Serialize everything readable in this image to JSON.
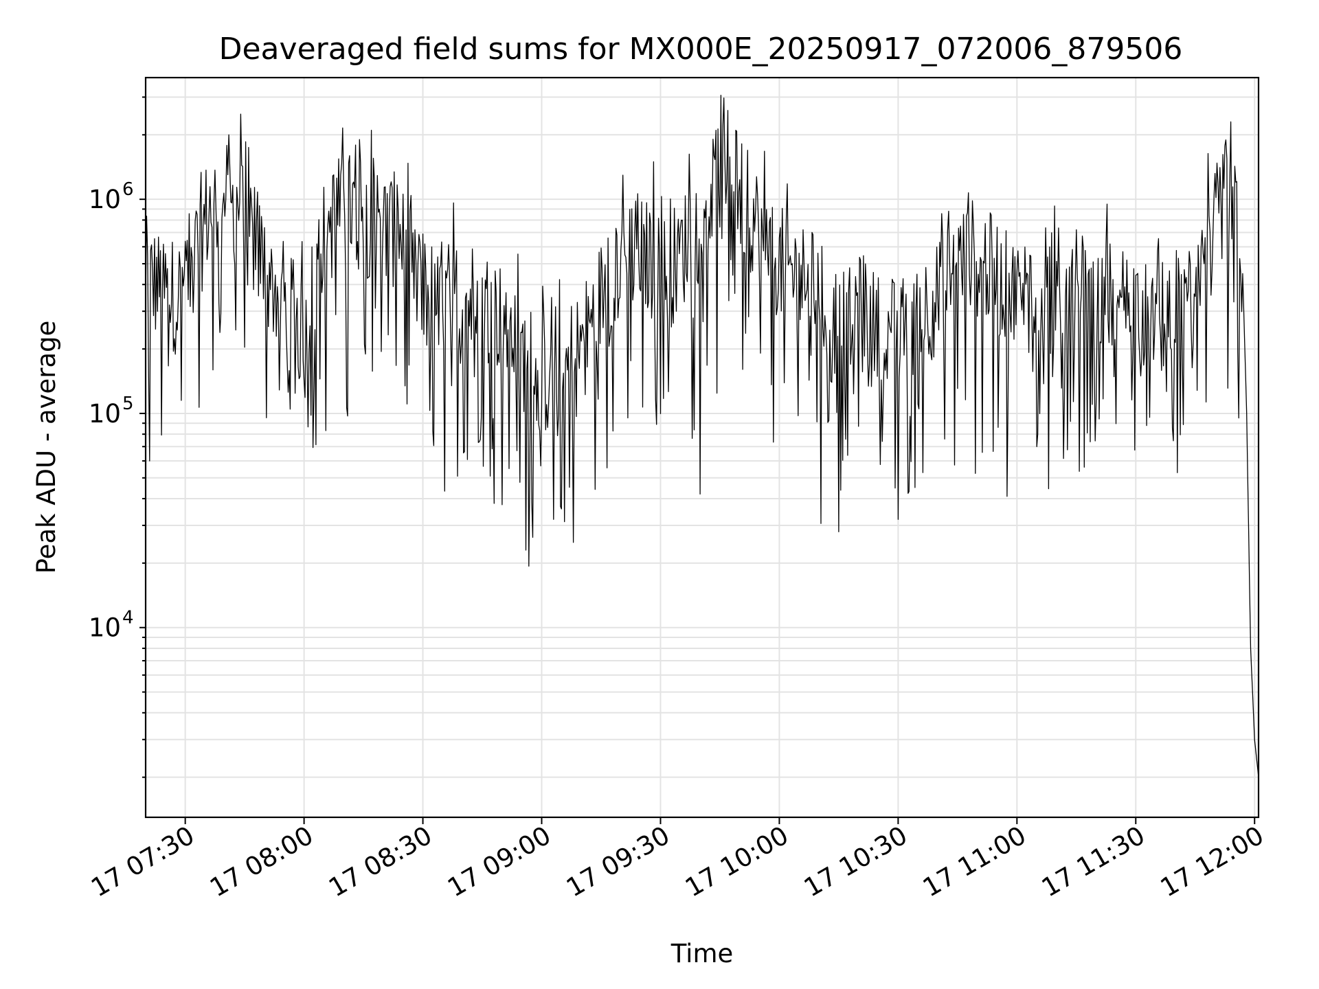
{
  "chart_data": {
    "type": "line",
    "title": "Deaveraged field sums for MX000E_20250917_072006_879506",
    "xlabel": "Time",
    "ylabel": "Peak ADU - average",
    "yscale": "log",
    "ylim": [
      1300,
      3700000
    ],
    "xlim": [
      "17 07:20",
      "17 12:01"
    ],
    "grid": true,
    "line_color": "#000000",
    "x_ticks": [
      "17 07:30",
      "17 08:00",
      "17 08:30",
      "17 09:00",
      "17 09:30",
      "17 10:00",
      "17 10:30",
      "17 11:00",
      "17 11:30",
      "17 12:00"
    ],
    "y_ticks": [
      {
        "base": "10",
        "exp": "4",
        "value": 10000
      },
      {
        "base": "10",
        "exp": "5",
        "value": 100000
      },
      {
        "base": "10",
        "exp": "6",
        "value": 1000000
      }
    ],
    "series": [
      {
        "x_start": "17 07:20",
        "x_end": "17 12:01",
        "anchors": [
          [
            "07:20",
            450000
          ],
          [
            "07:24",
            380000
          ],
          [
            "07:28",
            350000
          ],
          [
            "07:32",
            500000
          ],
          [
            "07:36",
            900000
          ],
          [
            "07:40",
            1000000
          ],
          [
            "07:44",
            850000
          ],
          [
            "07:48",
            600000
          ],
          [
            "07:52",
            400000
          ],
          [
            "07:56",
            300000
          ],
          [
            "08:00",
            250000
          ],
          [
            "08:04",
            600000
          ],
          [
            "08:08",
            850000
          ],
          [
            "08:12",
            900000
          ],
          [
            "08:16",
            800000
          ],
          [
            "08:20",
            750000
          ],
          [
            "08:24",
            700000
          ],
          [
            "08:28",
            400000
          ],
          [
            "08:32",
            350000
          ],
          [
            "08:36",
            350000
          ],
          [
            "08:40",
            350000
          ],
          [
            "08:44",
            330000
          ],
          [
            "08:48",
            300000
          ],
          [
            "08:52",
            250000
          ],
          [
            "08:56",
            180000
          ],
          [
            "09:00",
            150000
          ],
          [
            "09:04",
            140000
          ],
          [
            "09:08",
            180000
          ],
          [
            "09:12",
            250000
          ],
          [
            "09:16",
            400000
          ],
          [
            "09:20",
            500000
          ],
          [
            "09:24",
            600000
          ],
          [
            "09:28",
            500000
          ],
          [
            "09:32",
            450000
          ],
          [
            "09:36",
            600000
          ],
          [
            "09:40",
            800000
          ],
          [
            "09:44",
            1100000
          ],
          [
            "09:48",
            1300000
          ],
          [
            "09:52",
            900000
          ],
          [
            "09:56",
            700000
          ],
          [
            "10:00",
            500000
          ],
          [
            "10:04",
            450000
          ],
          [
            "10:08",
            400000
          ],
          [
            "10:12",
            300000
          ],
          [
            "10:16",
            250000
          ],
          [
            "10:20",
            300000
          ],
          [
            "10:24",
            250000
          ],
          [
            "10:28",
            220000
          ],
          [
            "10:32",
            250000
          ],
          [
            "10:36",
            300000
          ],
          [
            "10:40",
            350000
          ],
          [
            "10:44",
            450000
          ],
          [
            "10:48",
            550000
          ],
          [
            "10:52",
            500000
          ],
          [
            "10:56",
            400000
          ],
          [
            "11:00",
            350000
          ],
          [
            "11:04",
            400000
          ],
          [
            "11:08",
            400000
          ],
          [
            "11:12",
            350000
          ],
          [
            "11:16",
            300000
          ],
          [
            "11:20",
            350000
          ],
          [
            "11:24",
            350000
          ],
          [
            "11:28",
            320000
          ],
          [
            "11:32",
            300000
          ],
          [
            "11:36",
            280000
          ],
          [
            "11:40",
            300000
          ],
          [
            "11:44",
            320000
          ],
          [
            "11:48",
            550000
          ],
          [
            "11:52",
            1000000
          ],
          [
            "11:54",
            1100000
          ],
          [
            "11:56",
            700000
          ],
          [
            "11:57",
            450000
          ],
          [
            "11:58",
            100000
          ],
          [
            "11:59",
            8000
          ],
          [
            "12:00",
            3000
          ],
          [
            "12:01",
            2000
          ]
        ],
        "peaks": [
          [
            "07:44",
            2500000
          ],
          [
            "07:41",
            2000000
          ],
          [
            "08:14",
            1900000
          ],
          [
            "08:17",
            2100000
          ],
          [
            "09:44",
            2100000
          ],
          [
            "09:47",
            2600000
          ],
          [
            "09:49",
            2100000
          ],
          [
            "11:54",
            2300000
          ]
        ],
        "dips": [
          [
            "08:48",
            38000
          ],
          [
            "08:56",
            23000
          ],
          [
            "09:03",
            32000
          ],
          [
            "09:08",
            25000
          ],
          [
            "09:40",
            42000
          ],
          [
            "10:15",
            28000
          ],
          [
            "10:30",
            32000
          ],
          [
            "07:21",
            60000
          ]
        ]
      }
    ]
  }
}
